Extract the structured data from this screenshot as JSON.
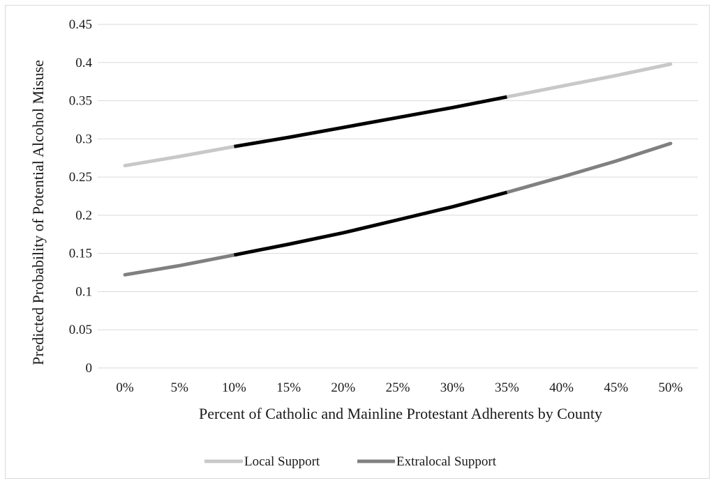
{
  "chart_data": {
    "type": "line",
    "title": "",
    "xlabel": "Percent of Catholic and Mainline Protestant Adherents by County",
    "ylabel": "Predicted Probability of Potential Alcohol Misuse",
    "categories": [
      "0%",
      "5%",
      "10%",
      "15%",
      "20%",
      "25%",
      "30%",
      "35%",
      "40%",
      "45%",
      "50%"
    ],
    "y_ticks": [
      "0",
      "0.05",
      "0.1",
      "0.15",
      "0.2",
      "0.25",
      "0.3",
      "0.35",
      "0.4",
      "0.45"
    ],
    "ylim": [
      0,
      0.45
    ],
    "grid": true,
    "legend_position": "bottom",
    "highlight_range": [
      "10%",
      "35%"
    ],
    "highlight_color": "#000000",
    "series": [
      {
        "name": "Local Support",
        "color": "#c8c8c8",
        "values": [
          0.265,
          0.277,
          0.29,
          0.302,
          0.315,
          0.328,
          0.341,
          0.355,
          0.369,
          0.383,
          0.398
        ]
      },
      {
        "name": "Extralocal Support",
        "color": "#808080",
        "values": [
          0.122,
          0.134,
          0.148,
          0.162,
          0.177,
          0.194,
          0.211,
          0.23,
          0.25,
          0.271,
          0.294
        ]
      }
    ]
  }
}
